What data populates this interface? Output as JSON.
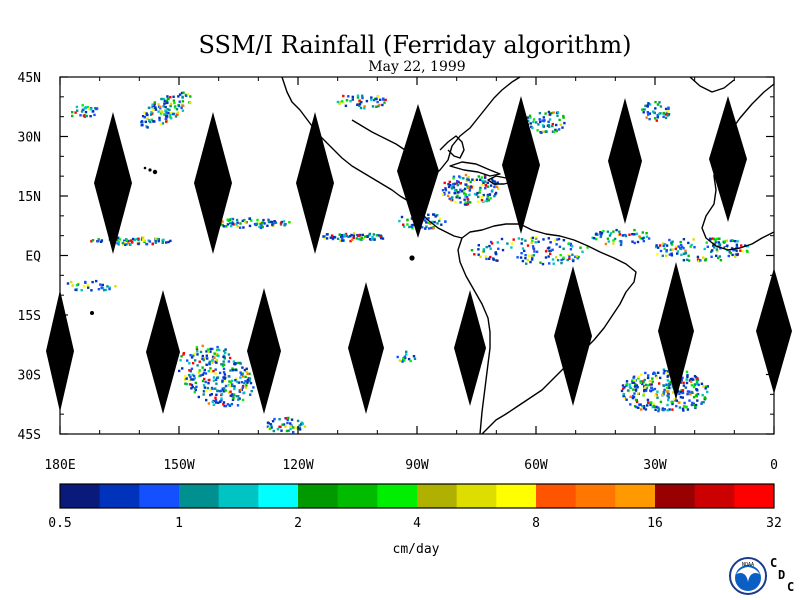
{
  "map": {
    "title": "SSM/I Rainfall (Ferriday algorithm)",
    "subtitle": "May 22, 1999",
    "lat_labels": [
      "45N",
      "30N",
      "15N",
      "EQ",
      "15S",
      "30S",
      "45S"
    ],
    "lon_labels": [
      "180E",
      "150W",
      "120W",
      "90W",
      "60W",
      "30W",
      "0"
    ],
    "extent": {
      "lon_min": -180,
      "lon_max": 0,
      "lat_min": -45,
      "lat_max": 45
    }
  },
  "colorbar": {
    "unit": "cm/day",
    "tick_labels": [
      "0.5",
      "1",
      "2",
      "4",
      "8",
      "16",
      "32"
    ],
    "colors": [
      "#0a1a7a",
      "#0033bb",
      "#1550ff",
      "#009090",
      "#00c4c4",
      "#00ffff",
      "#009900",
      "#00bb00",
      "#00ee00",
      "#b0b000",
      "#dddd00",
      "#ffff00",
      "#ff5500",
      "#ff7700",
      "#ff9900",
      "#990000",
      "#cc0000",
      "#ff0000"
    ]
  },
  "logo": {
    "text": "NOAA",
    "letters": [
      "C",
      "D",
      "C"
    ]
  },
  "colors": {
    "land_outline": "#000000",
    "gap": "#000000"
  }
}
